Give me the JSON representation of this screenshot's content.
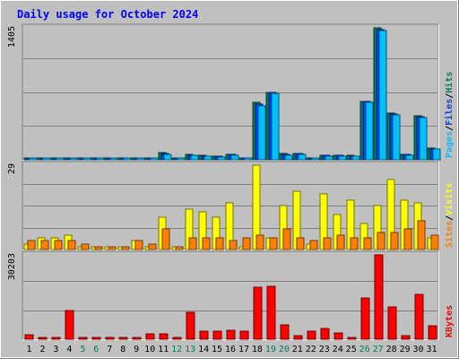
{
  "colors": {
    "background": "#c0c0c0",
    "title": "#0000ff",
    "hits": "#00805c",
    "files": "#0040ff",
    "pages": "#00c0ff",
    "visits": "#ffff00",
    "sites": "#ff8000",
    "kbytes": "#ff0000",
    "weekend_day": "#00805c"
  },
  "chart_data": {
    "type": "bar",
    "title": "Daily usage for October 2024",
    "days": [
      "1",
      "2",
      "3",
      "4",
      "5",
      "6",
      "7",
      "8",
      "9",
      "10",
      "11",
      "12",
      "13",
      "14",
      "15",
      "16",
      "17",
      "18",
      "19",
      "20",
      "21",
      "22",
      "23",
      "24",
      "25",
      "26",
      "27",
      "28",
      "29",
      "30",
      "31"
    ],
    "weekend_days": [
      "5",
      "6",
      "12",
      "13",
      "19",
      "20",
      "26",
      "27"
    ],
    "panels": [
      {
        "id": "hits",
        "max_label": "1405",
        "ymax": 1405,
        "side_labels": [
          {
            "text": "Pages",
            "color_key": "pages"
          },
          {
            "text": "/",
            "color_key": "sep"
          },
          {
            "text": "Files",
            "color_key": "files"
          },
          {
            "text": "/",
            "color_key": "sep"
          },
          {
            "text": "Hits",
            "color_key": "hits"
          }
        ],
        "series": [
          {
            "name": "Hits",
            "color_key": "hits",
            "values": [
              22,
              18,
              22,
              20,
              10,
              10,
              10,
              10,
              10,
              10,
              75,
              10,
              55,
              45,
              40,
              60,
              10,
              610,
              720,
              65,
              70,
              10,
              50,
              50,
              45,
              625,
              1405,
              495,
              60,
              470,
              120
            ]
          },
          {
            "name": "Files",
            "color_key": "files",
            "values": [
              20,
              16,
              20,
              18,
              8,
              8,
              8,
              8,
              8,
              8,
              70,
              8,
              50,
              40,
              35,
              55,
              8,
              595,
              715,
              60,
              65,
              8,
              45,
              45,
              40,
              620,
              1390,
              490,
              55,
              460,
              118
            ]
          },
          {
            "name": "Pages",
            "color_key": "pages",
            "values": [
              18,
              14,
              18,
              16,
              6,
              6,
              6,
              6,
              6,
              6,
              60,
              6,
              45,
              35,
              30,
              50,
              6,
              570,
              705,
              45,
              55,
              6,
              40,
              40,
              35,
              610,
              1375,
              475,
              45,
              450,
              115
            ]
          }
        ]
      },
      {
        "id": "visits",
        "max_label": "29",
        "ymax": 29,
        "side_labels": [
          {
            "text": "Sites",
            "color_key": "sites"
          },
          {
            "text": "/",
            "color_key": "sep"
          },
          {
            "text": "Visits",
            "color_key": "visits"
          }
        ],
        "series": [
          {
            "name": "Visits",
            "color_key": "visits",
            "values": [
              2,
              4,
              4,
              5,
              1,
              1,
              1,
              1,
              3,
              1,
              11,
              1,
              14,
              13,
              11,
              16,
              1,
              29,
              4,
              15,
              20,
              2,
              19,
              12,
              17,
              9,
              15,
              24,
              17,
              16,
              4
            ]
          },
          {
            "name": "Sites",
            "color_key": "sites",
            "values": [
              3,
              3,
              3,
              3,
              2,
              1,
              1,
              1,
              3,
              2,
              7,
              1,
              4,
              4,
              4,
              3,
              4,
              5,
              4,
              7,
              4,
              3,
              4,
              5,
              4,
              4,
              6,
              6,
              7,
              10,
              5
            ]
          }
        ]
      },
      {
        "id": "kbytes",
        "max_label": "30203",
        "ymax": 30203,
        "side_labels": [
          {
            "text": "KBytes",
            "color_key": "kbytes"
          }
        ],
        "series": [
          {
            "name": "KBytes",
            "color_key": "kbytes",
            "values": [
              1500,
              800,
              500,
              10200,
              300,
              300,
              300,
              300,
              300,
              2000,
              2000,
              300,
              9700,
              3000,
              3000,
              3300,
              3000,
              18500,
              19000,
              5200,
              1400,
              2800,
              4000,
              2200,
              300,
              14900,
              30203,
              11600,
              1300,
              16000,
              4800
            ]
          }
        ]
      }
    ]
  }
}
